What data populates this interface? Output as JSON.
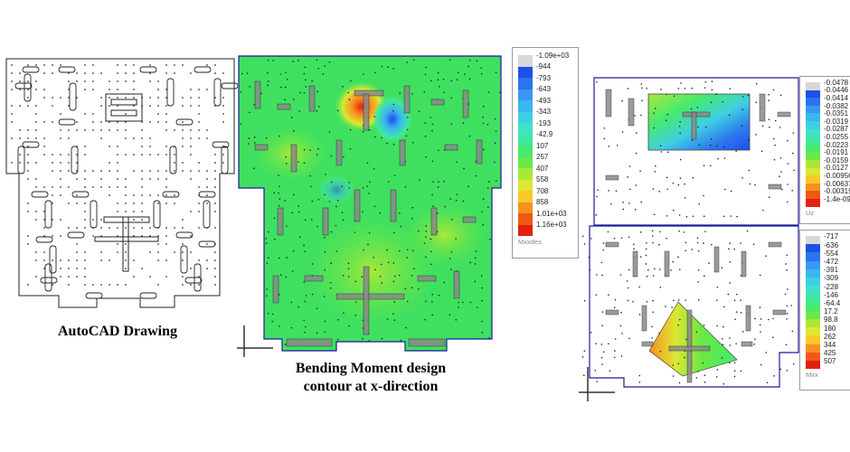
{
  "captions": {
    "autocad": "AutoCAD Drawing",
    "moment_line1": "Bending Moment design",
    "moment_line2": "contour at x-direction"
  },
  "legend_mxxdes": {
    "title": "Mxxdes",
    "labels": [
      "-1.09e+03",
      "-944",
      "-793",
      "-643",
      "-493",
      "-343",
      "-193",
      "-42.9",
      "107",
      "257",
      "407",
      "558",
      "708",
      "858",
      "1.01e+03",
      "1.16e+03"
    ],
    "colors": [
      "#d8d8d8",
      "#1e50e6",
      "#2a74f0",
      "#3a96f5",
      "#3ab6f0",
      "#3fcfe2",
      "#3fe2c8",
      "#40e8a0",
      "#45ea70",
      "#6ae844",
      "#a8e838",
      "#dce832",
      "#f8c828",
      "#f89020",
      "#f05818",
      "#e02010"
    ]
  },
  "legend_uz": {
    "title": "Uz",
    "labels": [
      "-0.0478",
      "-0.0446",
      "-0.0414",
      "-0.0382",
      "-0.0351",
      "-0.0319",
      "-0.0287",
      "-0.0255",
      "-0.0223",
      "-0.0191",
      "-0.0159",
      "-0.0127",
      "-0.00956",
      "-0.00637",
      "-0.00319",
      "-1.4e-09"
    ],
    "colors": [
      "#d8d8d8",
      "#1e50e6",
      "#2a74f0",
      "#3a96f5",
      "#3ab6f0",
      "#3fcfe2",
      "#3fe2c8",
      "#40e8a0",
      "#45ea70",
      "#6ae844",
      "#a8e838",
      "#dce832",
      "#f8c828",
      "#f89020",
      "#f05818",
      "#e02010"
    ]
  },
  "legend_mxx": {
    "title": "Mxx",
    "labels": [
      "-717",
      "-636",
      "-554",
      "-472",
      "-391",
      "-309",
      "-228",
      "-146",
      "-64.4",
      "17.2",
      "98.8",
      "180",
      "262",
      "344",
      "425",
      "507"
    ],
    "colors": [
      "#d8d8d8",
      "#1e50e6",
      "#2a74f0",
      "#3a96f5",
      "#3ab6f0",
      "#3fcfe2",
      "#3fe2c8",
      "#40e8a0",
      "#45ea70",
      "#6ae844",
      "#a8e838",
      "#dce832",
      "#f8c828",
      "#f89020",
      "#f05818",
      "#e02010"
    ]
  }
}
